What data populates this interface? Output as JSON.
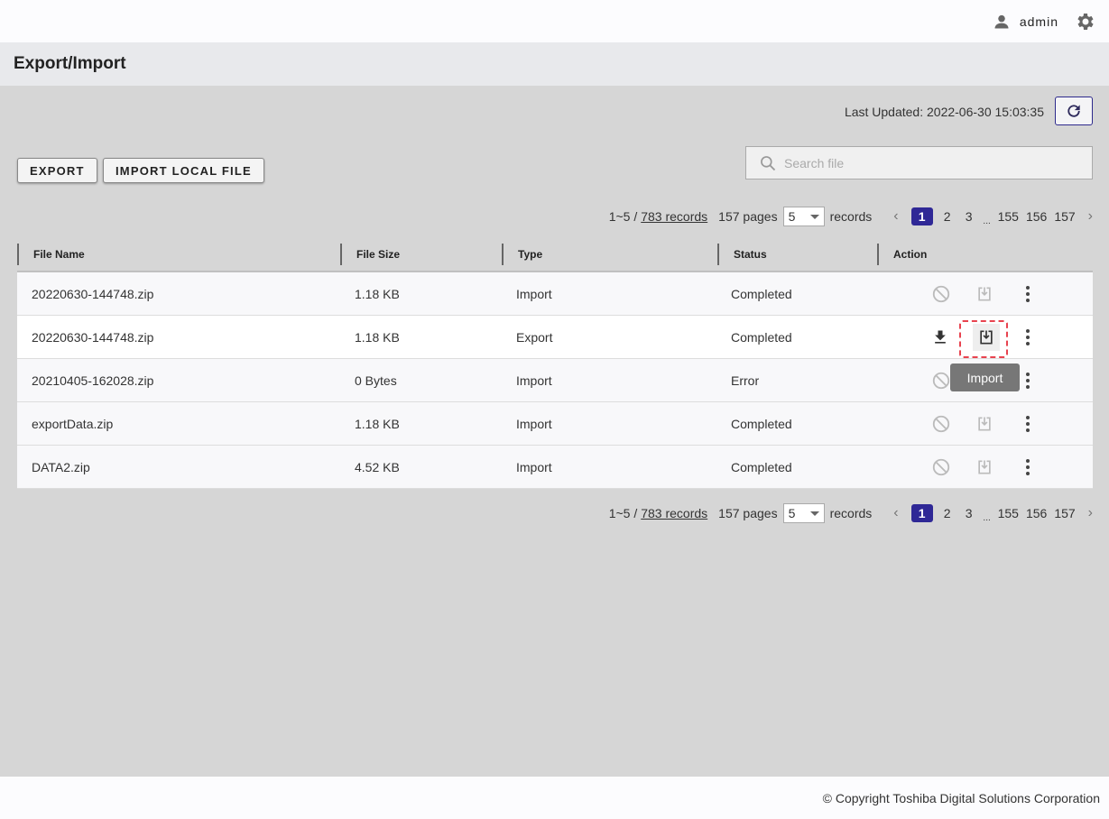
{
  "header": {
    "user": "admin"
  },
  "page": {
    "title": "Export/Import"
  },
  "toolbar": {
    "last_updated": "Last Updated: 2022-06-30 15:03:35",
    "export": "EXPORT",
    "import_local": "IMPORT LOCAL FILE",
    "search_placeholder": "Search file"
  },
  "pager": {
    "range": "1~5 /",
    "records_link": "783 records",
    "pages": "157 pages",
    "per_page": "5",
    "records": "records",
    "pages_list": [
      "1",
      "2",
      "3",
      "...",
      "155",
      "156",
      "157"
    ]
  },
  "table": {
    "headers": [
      "File Name",
      "File Size",
      "Type",
      "Status",
      "Action"
    ],
    "rows": [
      {
        "name": "20220630-144748.zip",
        "size": "1.18 KB",
        "type": "Import",
        "status": "Completed"
      },
      {
        "name": "20220630-144748.zip",
        "size": "1.18 KB",
        "type": "Export",
        "status": "Completed"
      },
      {
        "name": "20210405-162028.zip",
        "size": "0 Bytes",
        "type": "Import",
        "status": "Error"
      },
      {
        "name": "exportData.zip",
        "size": "1.18 KB",
        "type": "Import",
        "status": "Completed"
      },
      {
        "name": "DATA2.zip",
        "size": "4.52 KB",
        "type": "Import",
        "status": "Completed"
      }
    ]
  },
  "tooltip": "Import",
  "footer": "© Copyright Toshiba Digital Solutions Corporation",
  "colors": {
    "accent": "#2f2896",
    "highlight": "#e8434f"
  }
}
